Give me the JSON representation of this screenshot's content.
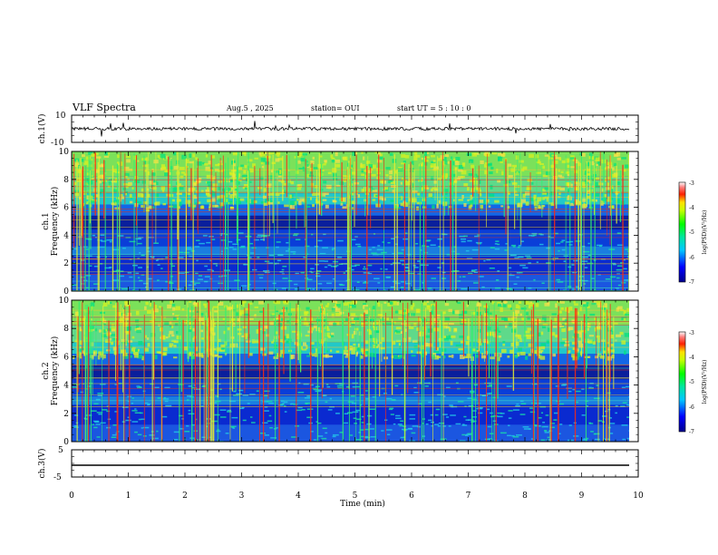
{
  "header": {
    "title": "VLF Spectra",
    "date": "Aug.5 , 2025",
    "station": "station= OUI",
    "start": "start UT = 5 : 10 : 0"
  },
  "chart_data": [
    {
      "type": "line",
      "panel": "ch1-waveform",
      "ylabel": "ch.1(V)",
      "ylim": [
        -10,
        10
      ],
      "yticks": [
        "10",
        "-10"
      ],
      "baseline": 0
    },
    {
      "type": "heatmap",
      "panel": "ch1-spectrogram",
      "ylabel_top": "ch.1",
      "ylabel": "Frequency (kHz)",
      "ylim": [
        0,
        10
      ],
      "yticks": [
        "0",
        "2",
        "4",
        "6",
        "8",
        "10"
      ],
      "colorbar": {
        "label": "log(PSD)(V²/Hz)",
        "ticks": [
          "-3",
          "-4",
          "-5",
          "-6",
          "-7"
        ],
        "range": [
          -7,
          -3
        ]
      }
    },
    {
      "type": "heatmap",
      "panel": "ch2-spectrogram",
      "ylabel_top": "ch.2",
      "ylabel": "Frequency (kHz)",
      "ylim": [
        0,
        10
      ],
      "yticks": [
        "0",
        "2",
        "4",
        "6",
        "8",
        "10"
      ],
      "colorbar": {
        "label": "log(PSD)(V²/Hz)",
        "ticks": [
          "-3",
          "-4",
          "-5",
          "-6",
          "-7"
        ],
        "range": [
          -7,
          -3
        ]
      }
    },
    {
      "type": "line",
      "panel": "ch3-waveform",
      "ylabel": "ch.3(V)",
      "ylim": [
        -5,
        5
      ],
      "yticks": [
        "5",
        "-5"
      ],
      "baseline": -1
    }
  ],
  "xaxis": {
    "label": "Time (min)",
    "range": [
      0,
      10
    ],
    "ticks": [
      "0",
      "1",
      "2",
      "3",
      "4",
      "5",
      "6",
      "7",
      "8",
      "9",
      "10"
    ]
  },
  "colors": {
    "frame": "#000000",
    "background": "#ffffff"
  }
}
